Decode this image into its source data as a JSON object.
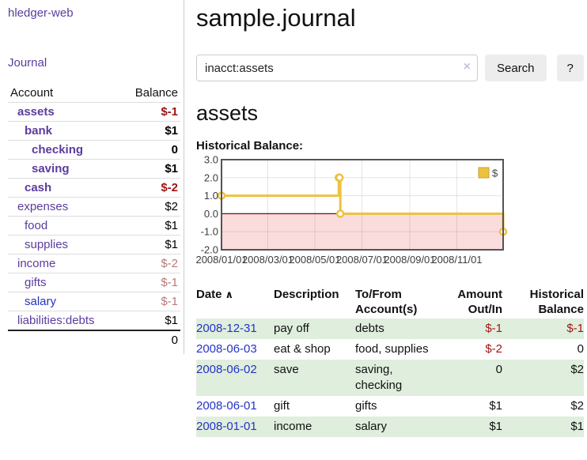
{
  "app": {
    "title": "hledger-web"
  },
  "colors": {
    "link_purple": "#5b3c9e",
    "link_blue": "#2533c4",
    "negative_strong": "#a41616",
    "negative_soft": "#b97979",
    "row_green": "#dfeedd",
    "series_yellow": "#edc240",
    "negative_region_pink": "#fadcdc",
    "zero_line_red": "#8b0000"
  },
  "sidebar": {
    "journal_link": "Journal",
    "accounts": {
      "account_header": "Account",
      "balance_header": "Balance",
      "rows": [
        {
          "name": "assets",
          "balance": "$-1",
          "indent": 1,
          "bold": true,
          "neg": "strong"
        },
        {
          "name": "bank",
          "balance": "$1",
          "indent": 2,
          "bold": true,
          "neg": null
        },
        {
          "name": "checking",
          "balance": "0",
          "indent": 3,
          "bold": true,
          "neg": null
        },
        {
          "name": "saving",
          "balance": "$1",
          "indent": 3,
          "bold": true,
          "neg": null
        },
        {
          "name": "cash",
          "balance": "$-2",
          "indent": 2,
          "bold": true,
          "neg": "strong"
        },
        {
          "name": "expenses",
          "balance": "$2",
          "indent": 1,
          "bold": false,
          "neg": null
        },
        {
          "name": "food",
          "balance": "$1",
          "indent": 2,
          "bold": false,
          "neg": null
        },
        {
          "name": "supplies",
          "balance": "$1",
          "indent": 2,
          "bold": false,
          "neg": null
        },
        {
          "name": "income",
          "balance": "$-2",
          "indent": 1,
          "bold": false,
          "neg": "soft"
        },
        {
          "name": "gifts",
          "balance": "$-1",
          "indent": 2,
          "bold": false,
          "neg": "soft"
        },
        {
          "name": "salary",
          "balance": "$-1",
          "indent": 2,
          "bold": false,
          "neg": "soft",
          "link_style": "blue"
        },
        {
          "name": "liabilities:debts",
          "balance": "$1",
          "indent": 1,
          "bold": false,
          "neg": null
        }
      ],
      "total": "0"
    }
  },
  "main": {
    "title": "sample.journal",
    "search": {
      "value": "inacct:assets",
      "clear_icon": "×",
      "button_label": "Search",
      "help_label": "?"
    },
    "account_heading": "assets",
    "chart_label": "Historical Balance:",
    "register": {
      "headers": {
        "date": "Date",
        "description": "Description",
        "account": "To/From Account(s)",
        "amount": "Amount Out/In",
        "balance": "Historical Balance"
      },
      "sort_icon": "∧",
      "rows": [
        {
          "date": "2008-12-31",
          "description": "pay off",
          "accounts": "debts",
          "amount": "$-1",
          "balance": "$-1"
        },
        {
          "date": "2008-06-03",
          "description": "eat & shop",
          "accounts": "food, supplies",
          "amount": "$-2",
          "balance": "0"
        },
        {
          "date": "2008-06-02",
          "description": "save",
          "accounts": "saving, checking",
          "amount": "0",
          "balance": "$2"
        },
        {
          "date": "2008-06-01",
          "description": "gift",
          "accounts": "gifts",
          "amount": "$1",
          "balance": "$2"
        },
        {
          "date": "2008-01-01",
          "description": "income",
          "accounts": "salary",
          "amount": "$1",
          "balance": "$1"
        }
      ]
    }
  },
  "chart_data": {
    "type": "line",
    "step": true,
    "title": "Historical Balance",
    "series": [
      {
        "name": "$",
        "color": "#edc240",
        "points": [
          [
            "2008-01-01",
            1
          ],
          [
            "2008-06-01",
            2
          ],
          [
            "2008-06-02",
            2
          ],
          [
            "2008-06-03",
            0
          ],
          [
            "2008-12-31",
            -1
          ]
        ]
      }
    ],
    "xlim": [
      "2008-01-01",
      "2008-12-31"
    ],
    "ylim": [
      -2,
      3
    ],
    "x_ticks": [
      "2008/01/01",
      "2008/03/01",
      "2008/05/01",
      "2008/07/01",
      "2008/09/01",
      "2008/11/01"
    ],
    "y_ticks": [
      "3.0",
      "2.0",
      "1.0",
      "0.0",
      "-1.0",
      "-2.0"
    ],
    "grid": true,
    "legend": {
      "label": "$",
      "position": "top-right"
    },
    "negative_region_color": "#fadcdc",
    "zero_line_color": "#8b0000"
  }
}
